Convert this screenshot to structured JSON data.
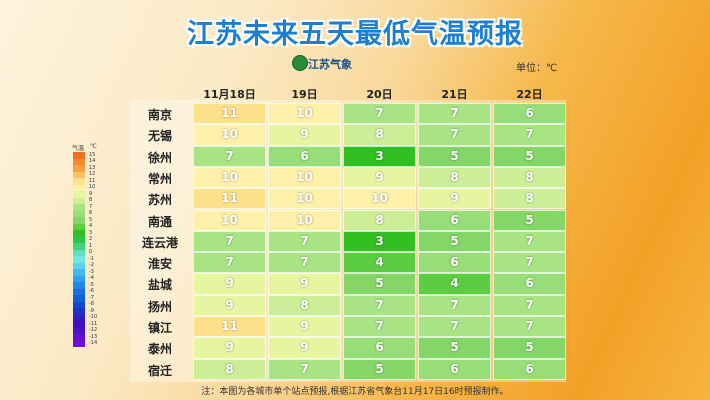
{
  "header": {
    "title": "江苏未来五天最低气温预报",
    "logo": "江苏气象",
    "unit": "单位：℃"
  },
  "table": {
    "columns": [
      "11月18日",
      "19日",
      "20日",
      "21日",
      "22日"
    ],
    "rows": [
      {
        "city": "南京",
        "values": [
          11,
          10,
          7,
          7,
          6
        ]
      },
      {
        "city": "无锡",
        "values": [
          10,
          9,
          8,
          7,
          7
        ]
      },
      {
        "city": "徐州",
        "values": [
          7,
          6,
          3,
          5,
          5
        ]
      },
      {
        "city": "常州",
        "values": [
          10,
          10,
          9,
          8,
          8
        ]
      },
      {
        "city": "苏州",
        "values": [
          11,
          10,
          10,
          9,
          8
        ]
      },
      {
        "city": "南通",
        "values": [
          10,
          10,
          8,
          6,
          5
        ]
      },
      {
        "city": "连云港",
        "values": [
          7,
          7,
          3,
          5,
          7
        ]
      },
      {
        "city": "淮安",
        "values": [
          7,
          7,
          4,
          6,
          7
        ]
      },
      {
        "city": "盐城",
        "values": [
          9,
          9,
          5,
          4,
          6
        ]
      },
      {
        "city": "扬州",
        "values": [
          9,
          8,
          7,
          7,
          7
        ]
      },
      {
        "city": "镇江",
        "values": [
          11,
          9,
          7,
          7,
          7
        ]
      },
      {
        "city": "泰州",
        "values": [
          9,
          9,
          6,
          5,
          5
        ]
      },
      {
        "city": "宿迁",
        "values": [
          8,
          7,
          5,
          6,
          6
        ]
      }
    ]
  },
  "legend": {
    "title": "气温",
    "unit": "℃",
    "items": [
      {
        "value": 15,
        "color": "#f07020"
      },
      {
        "value": 14,
        "color": "#f58a30"
      },
      {
        "value": 13,
        "color": "#f8a040"
      },
      {
        "value": 12,
        "color": "#fbc060"
      },
      {
        "value": 11,
        "color": "#fde08a"
      },
      {
        "value": 10,
        "color": "#fdf0a8"
      },
      {
        "value": 9,
        "color": "#e8f5a0"
      },
      {
        "value": 8,
        "color": "#ccee96"
      },
      {
        "value": 7,
        "color": "#a8e484"
      },
      {
        "value": 6,
        "color": "#98de78"
      },
      {
        "value": 5,
        "color": "#84d668"
      },
      {
        "value": 4,
        "color": "#5ccc40"
      },
      {
        "value": 3,
        "color": "#30c020"
      },
      {
        "value": 2,
        "color": "#28c850"
      },
      {
        "value": 1,
        "color": "#40d080"
      },
      {
        "value": 0,
        "color": "#60e0c0"
      },
      {
        "value": -1,
        "color": "#70e8e0"
      },
      {
        "value": -2,
        "color": "#60d0f0"
      },
      {
        "value": -3,
        "color": "#40b8f0"
      },
      {
        "value": -4,
        "color": "#30a0f0"
      },
      {
        "value": -5,
        "color": "#2088e8"
      },
      {
        "value": -6,
        "color": "#1870e0"
      },
      {
        "value": -7,
        "color": "#1060d8"
      },
      {
        "value": -8,
        "color": "#1048d0"
      },
      {
        "value": -9,
        "color": "#2030c8"
      },
      {
        "value": -10,
        "color": "#3020c0"
      },
      {
        "value": -11,
        "color": "#4010c0"
      },
      {
        "value": -12,
        "color": "#5010c8"
      },
      {
        "value": -13,
        "color": "#6010d0"
      },
      {
        "value": -14,
        "color": "#7010d8"
      }
    ]
  },
  "footnote": "注：本图为各城市单个站点预报,根据江苏省气象台11月17日16时预报制作。"
}
